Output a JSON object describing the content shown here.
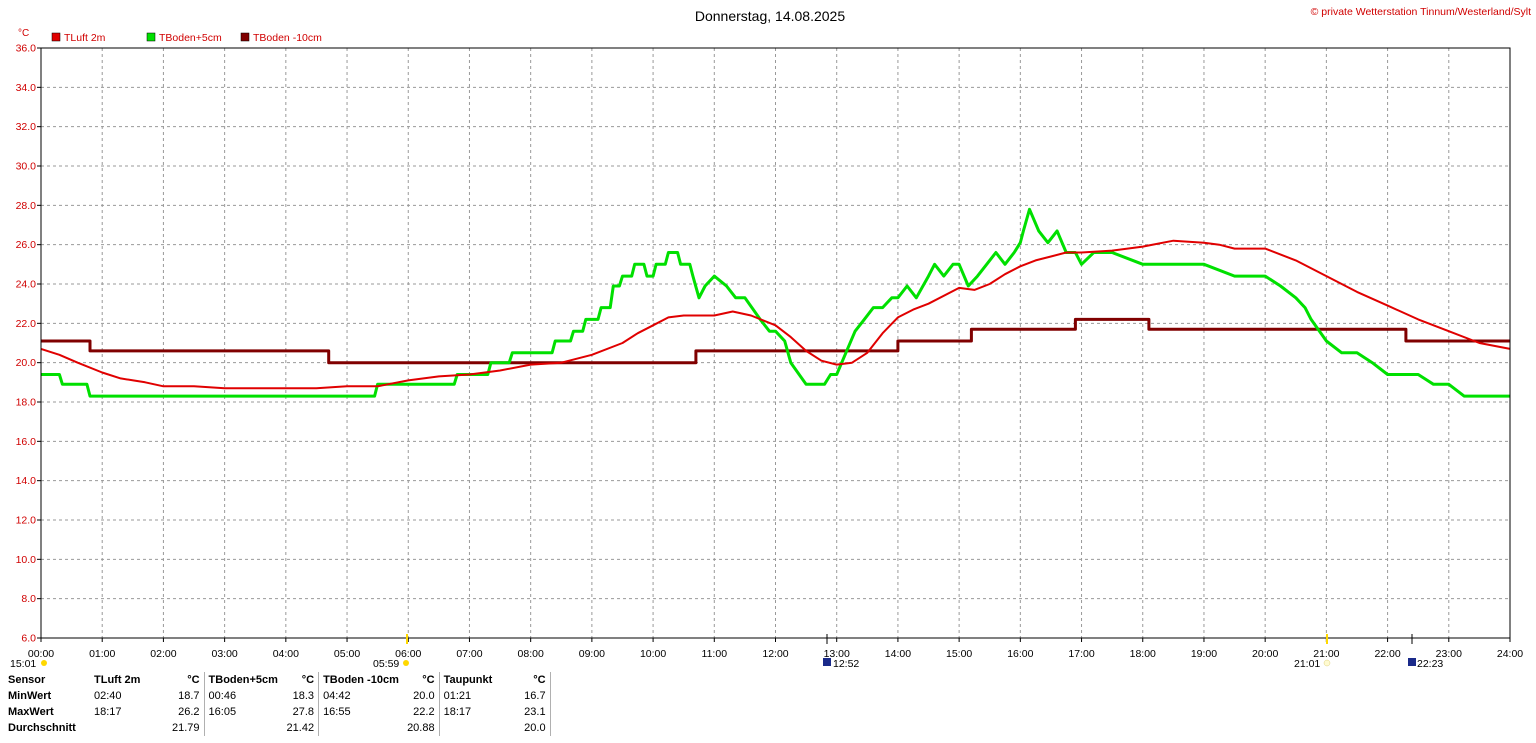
{
  "header": {
    "title": "Donnerstag, 14.08.2025",
    "copyright": "© private Wetterstation Tinnum/Westerland/Sylt",
    "unit_label": "°C"
  },
  "chart_data": {
    "type": "line",
    "title": "Donnerstag, 14.08.2025",
    "ylabel": "°C",
    "ylim": [
      6.0,
      36.0
    ],
    "yticks": [
      "6.0",
      "8.0",
      "10.0",
      "12.0",
      "14.0",
      "16.0",
      "18.0",
      "20.0",
      "22.0",
      "24.0",
      "26.0",
      "28.0",
      "30.0",
      "32.0",
      "34.0",
      "36.0"
    ],
    "xlim": [
      0,
      24
    ],
    "xticks": [
      "00:00",
      "01:00",
      "02:00",
      "03:00",
      "04:00",
      "05:00",
      "06:00",
      "07:00",
      "08:00",
      "09:00",
      "10:00",
      "11:00",
      "12:00",
      "13:00",
      "14:00",
      "15:00",
      "16:00",
      "17:00",
      "18:00",
      "19:00",
      "20:00",
      "21:00",
      "22:00",
      "23:00",
      "24:00"
    ],
    "grid": true,
    "legend_position": "top-left",
    "series": [
      {
        "name": "TLuft 2m",
        "color": "#e00000",
        "x": [
          0,
          0.3,
          0.6,
          1.0,
          1.3,
          1.7,
          2.0,
          2.5,
          3.0,
          3.5,
          4.0,
          4.5,
          5.0,
          5.5,
          6.0,
          6.5,
          7.0,
          7.5,
          8.0,
          8.5,
          9.0,
          9.5,
          9.75,
          10.0,
          10.25,
          10.5,
          11.0,
          11.3,
          11.6,
          12.0,
          12.25,
          12.5,
          12.75,
          13.0,
          13.25,
          13.5,
          13.75,
          14.0,
          14.25,
          14.5,
          15.0,
          15.25,
          15.5,
          15.75,
          16.0,
          16.25,
          16.5,
          16.75,
          17.0,
          17.5,
          18.0,
          18.5,
          19.0,
          19.25,
          19.5,
          20.0,
          20.5,
          21.0,
          21.5,
          22.0,
          22.5,
          23.0,
          23.5,
          24.0
        ],
        "y": [
          20.7,
          20.4,
          20.0,
          19.5,
          19.2,
          19.0,
          18.8,
          18.8,
          18.7,
          18.7,
          18.7,
          18.7,
          18.8,
          18.8,
          19.1,
          19.3,
          19.4,
          19.6,
          19.9,
          20.0,
          20.4,
          21.0,
          21.5,
          21.9,
          22.3,
          22.4,
          22.4,
          22.6,
          22.4,
          21.9,
          21.3,
          20.6,
          20.1,
          19.9,
          20.0,
          20.5,
          21.5,
          22.3,
          22.7,
          23.0,
          23.8,
          23.7,
          24.0,
          24.5,
          24.9,
          25.2,
          25.4,
          25.6,
          25.6,
          25.7,
          25.9,
          26.2,
          26.1,
          26.0,
          25.8,
          25.8,
          25.2,
          24.4,
          23.6,
          22.9,
          22.2,
          21.6,
          21.0,
          20.7
        ]
      },
      {
        "name": "TBoden+5cm",
        "color": "#00e000",
        "x": [
          0,
          0.3,
          0.35,
          0.75,
          0.8,
          5.45,
          5.5,
          6.75,
          6.8,
          7.3,
          7.35,
          7.65,
          7.7,
          8.35,
          8.4,
          8.65,
          8.7,
          8.85,
          8.9,
          9.1,
          9.15,
          9.3,
          9.35,
          9.45,
          9.5,
          9.65,
          9.7,
          9.85,
          9.9,
          10.0,
          10.05,
          10.2,
          10.25,
          10.4,
          10.45,
          10.6,
          10.65,
          10.75,
          10.85,
          11.0,
          11.2,
          11.35,
          11.5,
          11.75,
          11.9,
          12.0,
          12.15,
          12.25,
          12.5,
          12.75,
          12.8,
          12.9,
          13.0,
          13.15,
          13.3,
          13.45,
          13.6,
          13.75,
          13.9,
          14.0,
          14.15,
          14.3,
          14.5,
          14.6,
          14.75,
          14.9,
          15.0,
          15.15,
          15.3,
          15.45,
          15.6,
          15.75,
          15.9,
          16.0,
          16.05,
          16.15,
          16.3,
          16.45,
          16.6,
          16.75,
          16.9,
          17.0,
          17.2,
          17.5,
          18.0,
          18.5,
          18.75,
          19.0,
          19.5,
          19.75,
          19.85,
          20.0,
          20.25,
          20.5,
          20.65,
          20.75,
          21.0,
          21.25,
          21.5,
          21.75,
          22.0,
          22.25,
          22.5,
          22.75,
          23.0,
          23.25,
          23.5,
          24.0
        ],
        "y": [
          19.4,
          19.4,
          18.9,
          18.9,
          18.3,
          18.3,
          18.9,
          18.9,
          19.4,
          19.4,
          20.0,
          20.0,
          20.5,
          20.5,
          21.1,
          21.1,
          21.6,
          21.6,
          22.2,
          22.2,
          22.8,
          22.8,
          23.9,
          23.9,
          24.4,
          24.4,
          25.0,
          25.0,
          24.4,
          24.4,
          25.0,
          25.0,
          25.6,
          25.6,
          25.0,
          25.0,
          24.4,
          23.3,
          23.9,
          24.4,
          23.9,
          23.3,
          23.3,
          22.2,
          21.6,
          21.6,
          21.1,
          20.0,
          18.9,
          18.9,
          18.9,
          19.4,
          19.4,
          20.5,
          21.6,
          22.2,
          22.8,
          22.8,
          23.3,
          23.3,
          23.9,
          23.3,
          24.4,
          25.0,
          24.4,
          25.0,
          25.0,
          23.9,
          24.4,
          25.0,
          25.6,
          25.0,
          25.6,
          26.1,
          26.7,
          27.8,
          26.7,
          26.1,
          26.7,
          25.6,
          25.6,
          25.0,
          25.6,
          25.6,
          25.0,
          25.0,
          25.0,
          25.0,
          24.4,
          24.4,
          24.4,
          24.4,
          23.9,
          23.3,
          22.8,
          22.2,
          21.1,
          20.5,
          20.5,
          20.0,
          19.4,
          19.4,
          19.4,
          18.9,
          18.9,
          18.3,
          18.3,
          18.3
        ]
      },
      {
        "name": "TBoden -10cm",
        "color": "#800000",
        "x": [
          0,
          0.8,
          0.8,
          4.7,
          4.7,
          10.7,
          10.7,
          14.0,
          14.0,
          15.2,
          15.2,
          16.9,
          16.9,
          18.1,
          18.1,
          22.3,
          22.3,
          24.0
        ],
        "y": [
          21.1,
          21.1,
          20.6,
          20.6,
          20.0,
          20.0,
          20.6,
          20.6,
          21.1,
          21.1,
          21.7,
          21.7,
          22.2,
          22.2,
          21.7,
          21.7,
          21.1,
          21.1
        ]
      }
    ]
  },
  "sun_markers": {
    "left_time": "15:01",
    "sunrise": "05:59",
    "moon_time": "12:52",
    "sunset": "21:01",
    "moonset": "22:23"
  },
  "stats": {
    "sensor_label": "Sensor",
    "min_label": "MinWert",
    "max_label": "MaxWert",
    "avg_label": "Durchschnitt",
    "unit": "°C",
    "columns": [
      {
        "name": "TLuft 2m",
        "min_time": "02:40",
        "min": "18.7",
        "max_time": "18:17",
        "max": "26.2",
        "avg": "21.79"
      },
      {
        "name": "TBoden+5cm",
        "min_time": "00:46",
        "min": "18.3",
        "max_time": "16:05",
        "max": "27.8",
        "avg": "21.42"
      },
      {
        "name": "TBoden -10cm",
        "min_time": "04:42",
        "min": "20.0",
        "max_time": "16:55",
        "max": "22.2",
        "avg": "20.88"
      },
      {
        "name": "Taupunkt",
        "min_time": "01:21",
        "min": "16.7",
        "max_time": "18:17",
        "max": "23.1",
        "avg": "20.0"
      }
    ]
  }
}
